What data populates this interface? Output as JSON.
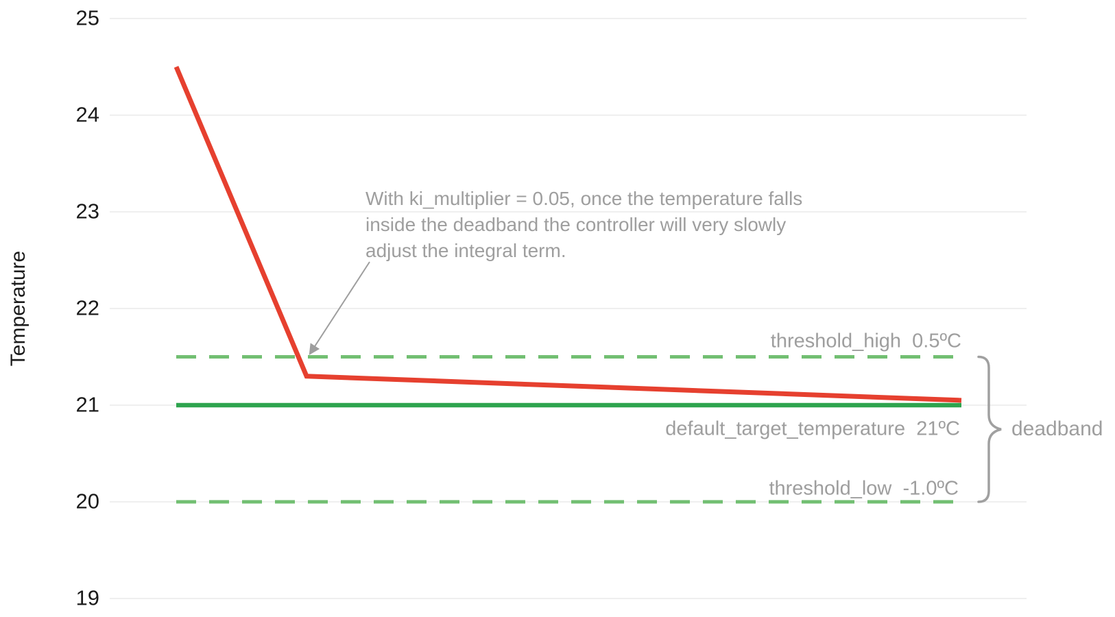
{
  "chart_data": {
    "type": "line",
    "title": "",
    "xlabel": "",
    "ylabel": "Temperature",
    "ylim": [
      19,
      25
    ],
    "yticks": [
      25,
      24,
      23,
      22,
      21,
      20,
      19
    ],
    "x_axis_visible": false,
    "grid": "horizontal",
    "legend_position": "none",
    "series": [
      {
        "name": "temperature",
        "style": "solid",
        "color": "#e6402f",
        "x": [
          0,
          0.166,
          1.0
        ],
        "y": [
          24.5,
          21.3,
          21.05
        ]
      },
      {
        "name": "default_target_temperature",
        "style": "solid",
        "color": "#2ea44e",
        "x": [
          0,
          1.0
        ],
        "y": [
          21,
          21
        ]
      },
      {
        "name": "threshold_high",
        "style": "dashed",
        "color": "#72bf72",
        "x": [
          0,
          1.0
        ],
        "y": [
          21.5,
          21.5
        ]
      },
      {
        "name": "threshold_low",
        "style": "dashed",
        "color": "#72bf72",
        "x": [
          0,
          1.0
        ],
        "y": [
          20,
          20
        ]
      }
    ],
    "annotations": [
      {
        "text": "With ki_multiplier = 0.05, once the temperature falls inside the deadband the controller will very slowly adjust the integral term.",
        "arrow_points_to": "temperature line crossing threshold_high at 21.5"
      },
      {
        "text": "deadband",
        "brace_span_y": [
          21.5,
          20
        ]
      }
    ]
  },
  "axis": {
    "y_title": "Temperature"
  },
  "annotation": {
    "line1": "With ki_multiplier = 0.05, once the temperature falls",
    "line2": "inside the deadband the controller will very slowly",
    "line3": "adjust the integral term."
  },
  "labels": {
    "threshold_high": "threshold_high  0.5ºC",
    "default_target": "default_target_temperature  21ºC",
    "threshold_low": "threshold_low  -1.0ºC",
    "deadband": "deadband"
  },
  "colors": {
    "temperature_line": "#e6402f",
    "target_line": "#2ea44e",
    "threshold_line": "#72bf72",
    "gray_text": "#9e9e9e",
    "gridline": "#efefef",
    "axis_text": "#1b1b1b",
    "background": "#ffffff"
  }
}
